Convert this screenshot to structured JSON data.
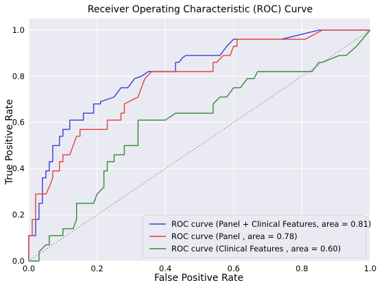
{
  "chart_data": {
    "type": "line",
    "title": "Receiver Operating Characteristic (ROC) Curve",
    "xlabel": "False Positive Rate",
    "ylabel": "True Positive Rate",
    "xlim": [
      0.0,
      1.0
    ],
    "ylim": [
      0.0,
      1.05
    ],
    "xticks": [
      "0.0",
      "0.2",
      "0.4",
      "0.6",
      "0.8",
      "1.0"
    ],
    "yticks": [
      "0.0",
      "0.2",
      "0.4",
      "0.6",
      "0.8",
      "1.0"
    ],
    "grid": true,
    "legend_position": "lower-right",
    "background": "#eaeaf2",
    "diagonal": {
      "x": [
        0,
        1
      ],
      "y": [
        0,
        1
      ],
      "color": "#777777",
      "style": "dotted"
    },
    "series": [
      {
        "name": "ROC curve (Panel + Clinical Features, area = 0.81)",
        "color": "#3a3ad6",
        "x": [
          0.0,
          0.0,
          0.02,
          0.02,
          0.03,
          0.03,
          0.04,
          0.04,
          0.05,
          0.05,
          0.06,
          0.06,
          0.07,
          0.07,
          0.09,
          0.09,
          0.1,
          0.1,
          0.12,
          0.12,
          0.13,
          0.13,
          0.16,
          0.16,
          0.19,
          0.19,
          0.21,
          0.21,
          0.25,
          0.27,
          0.29,
          0.31,
          0.31,
          0.33,
          0.35,
          0.37,
          0.43,
          0.43,
          0.44,
          0.45,
          0.46,
          0.53,
          0.56,
          0.58,
          0.6,
          0.66,
          0.74,
          0.85,
          1.0
        ],
        "y": [
          0.0,
          0.11,
          0.11,
          0.18,
          0.18,
          0.25,
          0.25,
          0.36,
          0.36,
          0.39,
          0.39,
          0.43,
          0.43,
          0.5,
          0.5,
          0.54,
          0.54,
          0.57,
          0.57,
          0.61,
          0.61,
          0.61,
          0.61,
          0.64,
          0.64,
          0.68,
          0.68,
          0.69,
          0.71,
          0.75,
          0.75,
          0.79,
          0.79,
          0.8,
          0.82,
          0.82,
          0.82,
          0.86,
          0.86,
          0.88,
          0.89,
          0.89,
          0.89,
          0.93,
          0.96,
          0.96,
          0.96,
          1.0,
          1.0
        ]
      },
      {
        "name": "ROC curve (Panel , area = 0.78)",
        "color": "#e0413a",
        "x": [
          0.0,
          0.0,
          0.01,
          0.01,
          0.02,
          0.02,
          0.04,
          0.05,
          0.06,
          0.06,
          0.07,
          0.07,
          0.09,
          0.09,
          0.1,
          0.1,
          0.12,
          0.13,
          0.13,
          0.14,
          0.14,
          0.15,
          0.15,
          0.16,
          0.23,
          0.23,
          0.27,
          0.27,
          0.28,
          0.28,
          0.32,
          0.33,
          0.34,
          0.36,
          0.38,
          0.46,
          0.54,
          0.54,
          0.55,
          0.57,
          0.59,
          0.6,
          0.61,
          0.61,
          0.66,
          0.71,
          0.79,
          0.81,
          0.86,
          1.0
        ],
        "y": [
          0.0,
          0.11,
          0.11,
          0.18,
          0.18,
          0.29,
          0.29,
          0.29,
          0.32,
          0.32,
          0.36,
          0.39,
          0.39,
          0.43,
          0.43,
          0.46,
          0.46,
          0.5,
          0.5,
          0.54,
          0.54,
          0.54,
          0.57,
          0.57,
          0.57,
          0.61,
          0.61,
          0.64,
          0.64,
          0.68,
          0.71,
          0.75,
          0.79,
          0.82,
          0.82,
          0.82,
          0.82,
          0.86,
          0.86,
          0.89,
          0.89,
          0.93,
          0.93,
          0.96,
          0.96,
          0.96,
          0.96,
          0.96,
          1.0,
          1.0
        ]
      },
      {
        "name": "ROC curve (Clinical Features , area = 0.60)",
        "color": "#2e8b2e",
        "x": [
          0.0,
          0.02,
          0.03,
          0.03,
          0.05,
          0.06,
          0.06,
          0.1,
          0.1,
          0.13,
          0.14,
          0.14,
          0.19,
          0.2,
          0.22,
          0.22,
          0.23,
          0.23,
          0.25,
          0.25,
          0.28,
          0.28,
          0.32,
          0.32,
          0.4,
          0.43,
          0.43,
          0.54,
          0.54,
          0.56,
          0.58,
          0.6,
          0.62,
          0.64,
          0.66,
          0.67,
          0.7,
          0.83,
          0.83,
          0.85,
          0.86,
          0.91,
          0.93,
          0.96,
          1.0
        ],
        "y": [
          0.0,
          0.0,
          0.0,
          0.04,
          0.07,
          0.07,
          0.11,
          0.11,
          0.14,
          0.14,
          0.18,
          0.25,
          0.25,
          0.29,
          0.32,
          0.39,
          0.39,
          0.43,
          0.43,
          0.46,
          0.46,
          0.5,
          0.5,
          0.61,
          0.61,
          0.64,
          0.64,
          0.64,
          0.68,
          0.71,
          0.71,
          0.75,
          0.75,
          0.79,
          0.79,
          0.82,
          0.82,
          0.82,
          0.82,
          0.86,
          0.86,
          0.89,
          0.89,
          0.93,
          1.0
        ]
      }
    ]
  }
}
